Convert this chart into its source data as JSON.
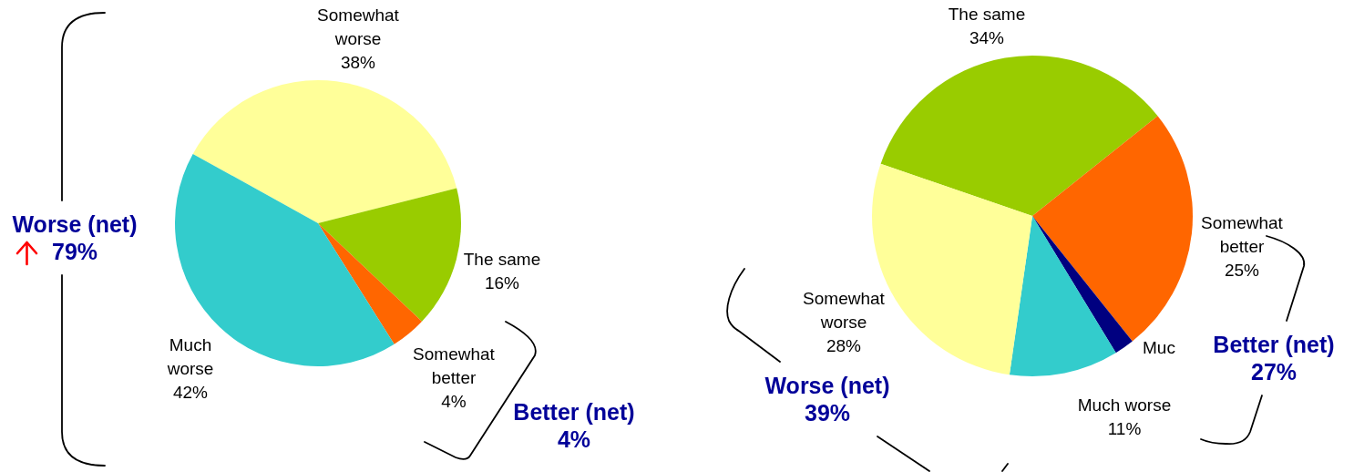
{
  "chart_data": [
    {
      "type": "pie",
      "categories": [
        "Somewhat worse",
        "The same",
        "Somewhat better",
        "Much worse"
      ],
      "values": [
        38,
        16,
        4,
        42
      ],
      "colors": [
        "#ffff99",
        "#99cc00",
        "#ff6600",
        "#33cccc"
      ],
      "value_labels": [
        "38%",
        "16%",
        "4%",
        "42%"
      ],
      "annotations": [
        "Worse (net)\n79%",
        "Better (net)\n4%"
      ]
    },
    {
      "type": "pie",
      "categories": [
        "The same",
        "Somewhat better",
        "Muc",
        "Much worse",
        "Somewhat worse"
      ],
      "values": [
        34,
        25,
        2,
        11,
        28
      ],
      "colors": [
        "#99cc00",
        "#ff6600",
        "#000080",
        "#33cccc",
        "#ffff99"
      ],
      "value_labels": [
        "34%",
        "25%",
        null,
        "11%",
        "28%"
      ],
      "annotations": [
        "Worse (net)\n39%",
        "Better (net)\n27%"
      ]
    }
  ]
}
